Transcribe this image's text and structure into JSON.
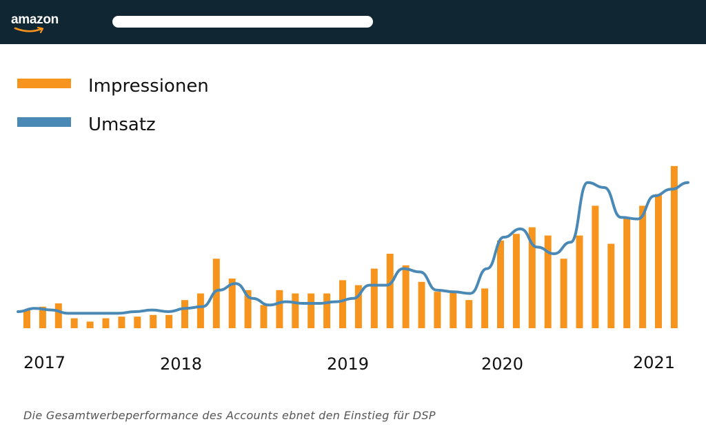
{
  "header": {
    "logo_text": "amazon",
    "background_color": "#102733",
    "search_placeholder": ""
  },
  "legend": [
    {
      "label": "Impressionen",
      "color": "#F7941D",
      "kind": "bar"
    },
    {
      "label": "Umsatz",
      "color": "#4A89B5",
      "kind": "line"
    }
  ],
  "caption": "Die Gesamtwerbeperformance des Accounts ebnet den Einstieg für DSP",
  "chart_data": {
    "type": "bar",
    "x_tick_labels": [
      "2017",
      "2018",
      "2019",
      "2020",
      "2021"
    ],
    "ylim": [
      0,
      100
    ],
    "grid": false,
    "legend_position": "top-left",
    "series": [
      {
        "name": "Impressionen",
        "kind": "bar",
        "color": "#F7941D",
        "values": [
          11,
          13,
          15,
          6,
          4,
          6,
          7,
          7,
          8,
          8,
          17,
          21,
          42,
          30,
          23,
          14,
          23,
          21,
          21,
          21,
          29,
          26,
          36,
          45,
          38,
          28,
          22,
          22,
          17,
          24,
          53,
          57,
          61,
          56,
          42,
          56,
          74,
          51,
          67,
          74,
          81,
          98
        ]
      },
      {
        "name": "Umsatz",
        "kind": "line",
        "color": "#4A89B5",
        "values": [
          10,
          12,
          11,
          9,
          9,
          9,
          9,
          10,
          11,
          10,
          12,
          13,
          23,
          27,
          18,
          14,
          16,
          15,
          15,
          16,
          18,
          26,
          26,
          36,
          34,
          23,
          22,
          21,
          36,
          55,
          60,
          49,
          45,
          52,
          88,
          85,
          67,
          66,
          80,
          84,
          88
        ]
      }
    ]
  }
}
